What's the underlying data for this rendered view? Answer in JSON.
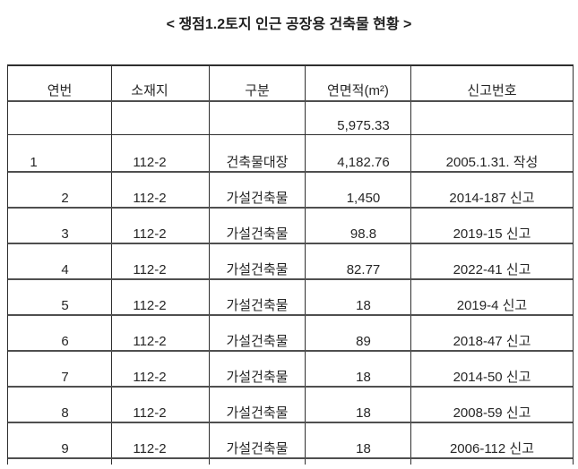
{
  "title": "< 쟁점1.2토지 인근 공장용 건축물 현황 >",
  "colors": {
    "background": "#ffffff",
    "text": "#262626",
    "border_thin": "#2f2f2f",
    "border_thick": "#4f4f4f"
  },
  "table": {
    "headers": {
      "no": "연번",
      "location": "소재지",
      "category": "구분",
      "area": "연면적(m²)",
      "report": "신고번호"
    },
    "rows": [
      {
        "no": "",
        "location": "",
        "category": "",
        "area": "5,975.33",
        "report": ""
      },
      {
        "no": "1",
        "location": "112-2",
        "category": "건축물대장",
        "area": "4,182.76",
        "report": "2005.1.31. 작성"
      },
      {
        "no": "2",
        "location": "112-2",
        "category": "가설건축물",
        "area": "1,450",
        "report": "2014-187 신고"
      },
      {
        "no": "3",
        "location": "112-2",
        "category": "가설건축물",
        "area": "98.8",
        "report": "2019-15 신고"
      },
      {
        "no": "4",
        "location": "112-2",
        "category": "가설건축물",
        "area": "82.77",
        "report": "2022-41 신고"
      },
      {
        "no": "5",
        "location": "112-2",
        "category": "가설건축물",
        "area": "18",
        "report": "2019-4 신고"
      },
      {
        "no": "6",
        "location": "112-2",
        "category": "가설건축물",
        "area": "89",
        "report": "2018-47 신고"
      },
      {
        "no": "7",
        "location": "112-2",
        "category": "가설건축물",
        "area": "18",
        "report": "2014-50 신고"
      },
      {
        "no": "8",
        "location": "112-2",
        "category": "가설건축물",
        "area": "18",
        "report": "2008-59 신고"
      },
      {
        "no": "9",
        "location": "112-2",
        "category": "가설건축물",
        "area": "18",
        "report": "2006-112 신고"
      }
    ]
  }
}
